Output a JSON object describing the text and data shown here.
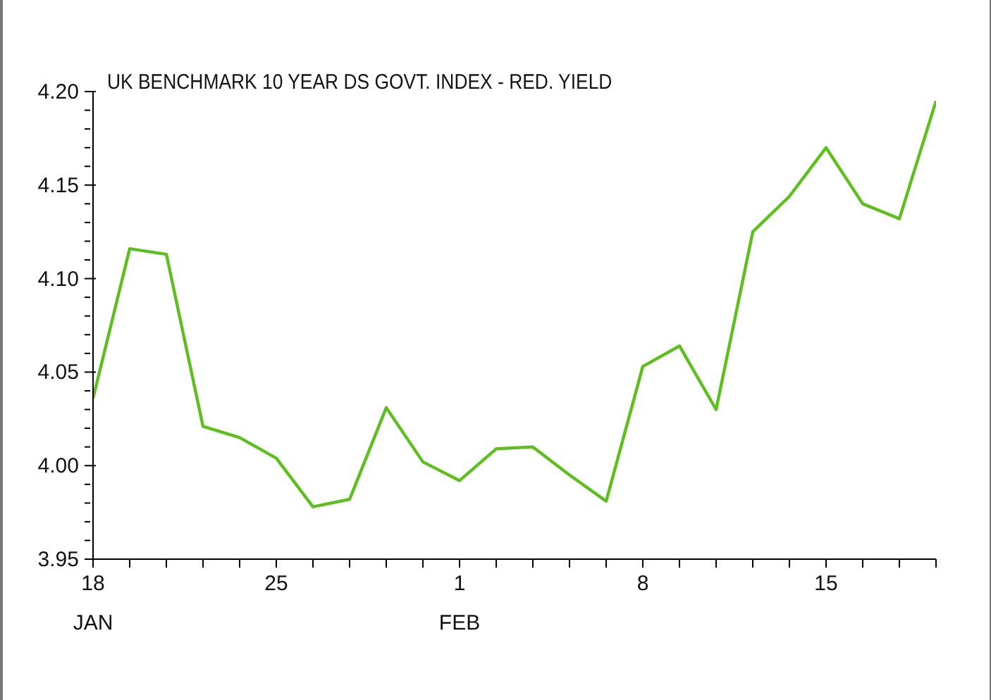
{
  "chart_data": {
    "type": "line",
    "title": "UK BENCHMARK 10 YEAR DS GOVT. INDEX - RED. YIELD",
    "categories": [
      "18\nJAN",
      null,
      null,
      null,
      null,
      "25",
      null,
      null,
      null,
      null,
      "1\nFEB",
      null,
      null,
      null,
      null,
      "8",
      null,
      null,
      null,
      null,
      "15",
      null,
      null,
      null
    ],
    "series": [
      {
        "color": "#5cbf1e",
        "values": [
          4.036,
          4.116,
          4.113,
          4.021,
          4.015,
          4.004,
          3.978,
          3.982,
          4.031,
          4.002,
          3.992,
          4.009,
          4.01,
          3.995,
          3.981,
          4.053,
          4.064,
          4.03,
          4.125,
          4.144,
          4.17,
          4.14,
          4.132,
          4.195
        ]
      }
    ],
    "ylim": [
      3.95,
      4.2
    ],
    "yticks": [
      3.95,
      {
        "value": 3.96,
        "label": null
      },
      {
        "value": 3.97,
        "label": null
      },
      {
        "value": 3.98,
        "label": null
      },
      {
        "value": 3.99,
        "label": null
      },
      "4.00",
      {
        "value": 4.01,
        "label": null
      },
      {
        "value": 4.02,
        "label": null
      },
      {
        "value": 4.03,
        "label": null
      },
      {
        "value": 4.04,
        "label": null
      },
      4.05,
      {
        "value": 4.06,
        "label": null
      },
      {
        "value": 4.07,
        "label": null
      },
      {
        "value": 4.08,
        "label": null
      },
      {
        "value": 4.09,
        "label": null
      },
      {
        "value": 4.1,
        "label": "4.10"
      },
      {
        "value": 4.11,
        "label": null
      },
      {
        "value": 4.12,
        "label": null
      },
      {
        "value": 4.13,
        "label": null
      },
      {
        "value": 4.14,
        "label": null
      },
      4.15,
      {
        "value": 4.16,
        "label": null
      },
      {
        "value": 4.17,
        "label": null
      },
      {
        "value": 4.18,
        "label": null
      },
      {
        "value": 4.19,
        "label": null
      },
      {
        "value": 4.2,
        "label": "4.20"
      }
    ],
    "grid": false,
    "legend": false,
    "marker": "none",
    "line_style": "solid"
  }
}
